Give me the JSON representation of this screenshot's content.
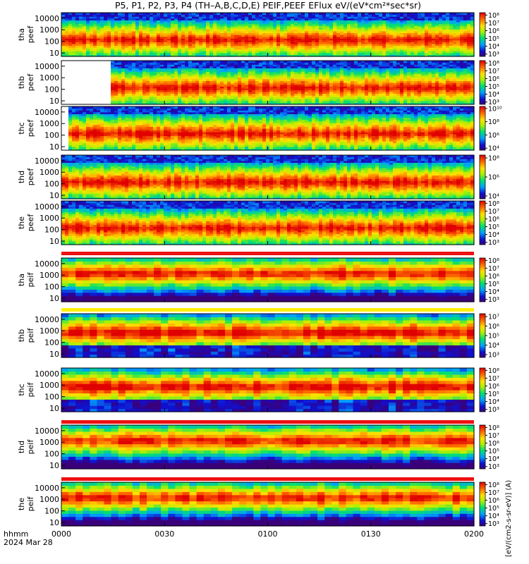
{
  "title": "P5, P1, P2, P3, P4 (TH–A,B,C,D,E) PEIF,PEEF EFlux eV/(eV*cm²*sec*sr)",
  "time_axis": {
    "label_top": "hhmm",
    "label_bottom": "2024 Mar 28",
    "ticks": [
      "0000",
      "0030",
      "0100",
      "0130",
      "0200"
    ],
    "range_minutes": [
      0,
      120
    ]
  },
  "colorbar_label": "[eV/(cm2-s-sr-eV)] (A)",
  "chart_data": [
    {
      "type": "heatmap",
      "panel": "tha peef",
      "probe": "tha",
      "product": "peef",
      "ylabels": [
        "10000",
        "1000",
        "100",
        "10"
      ],
      "ylog": true,
      "ylim": [
        5,
        30000
      ],
      "cbar_ticks": [
        "10⁸",
        "10⁷",
        "10⁶",
        "10⁵",
        "10⁴",
        "10³"
      ],
      "cbar_exponents": [
        8,
        7,
        6,
        5,
        4,
        3
      ]
    },
    {
      "type": "heatmap",
      "panel": "thb peef",
      "probe": "thb",
      "product": "peef",
      "ylabels": [
        "10000",
        "1000",
        "100",
        "10"
      ],
      "ylog": true,
      "ylim": [
        5,
        30000
      ],
      "data_start_minute": 14,
      "cbar_ticks": [
        "10⁸",
        "10⁷",
        "10⁶",
        "10⁵",
        "10⁴",
        "10³"
      ],
      "cbar_exponents": [
        8,
        7,
        6,
        5,
        4,
        3
      ]
    },
    {
      "type": "heatmap",
      "panel": "thc peef",
      "probe": "thc",
      "product": "peef",
      "ylabels": [
        "10000",
        "1000",
        "100",
        "10"
      ],
      "ylog": true,
      "ylim": [
        5,
        30000
      ],
      "data_start_minute": 2,
      "cbar_ticks": [
        "10¹⁰",
        "10⁸",
        "10⁶",
        "10⁴"
      ],
      "cbar_exponents": [
        10,
        8,
        6,
        4
      ]
    },
    {
      "type": "heatmap",
      "panel": "thd peef",
      "probe": "thd",
      "product": "peef",
      "ylabels": [
        "10000",
        "1000",
        "100",
        "10"
      ],
      "ylog": true,
      "ylim": [
        5,
        30000
      ],
      "cbar_ticks": [
        "10⁸",
        "10⁶",
        "10⁴"
      ],
      "cbar_exponents": [
        8,
        6,
        4
      ]
    },
    {
      "type": "heatmap",
      "panel": "the peef",
      "probe": "the",
      "product": "peef",
      "ylabels": [
        "10000",
        "1000",
        "100",
        "10"
      ],
      "ylog": true,
      "ylim": [
        5,
        30000
      ],
      "cbar_ticks": [
        "10⁸",
        "10⁷",
        "10⁶",
        "10⁵",
        "10⁴",
        "10³"
      ],
      "cbar_exponents": [
        8,
        7,
        6,
        5,
        4,
        3
      ]
    },
    {
      "type": "heatmap",
      "panel": "tha peif",
      "probe": "tha",
      "product": "peif",
      "ylabels": [
        "10000",
        "1000",
        "100",
        "10"
      ],
      "ylog": true,
      "ylim": [
        5,
        30000
      ],
      "cbar_ticks": [
        "10⁸",
        "10⁷",
        "10⁶",
        "10⁵",
        "10⁴",
        "10³"
      ],
      "cbar_exponents": [
        8,
        7,
        6,
        5,
        4,
        3
      ]
    },
    {
      "type": "heatmap",
      "panel": "thb peif",
      "probe": "thb",
      "product": "peif",
      "ylabels": [
        "10000",
        "1000",
        "100",
        "10"
      ],
      "ylog": true,
      "ylim": [
        5,
        30000
      ],
      "cbar_ticks": [
        "10⁷",
        "10⁶",
        "10⁵",
        "10⁴",
        "10³"
      ],
      "cbar_exponents": [
        7,
        6,
        5,
        4,
        3
      ]
    },
    {
      "type": "heatmap",
      "panel": "thc peif",
      "probe": "thc",
      "product": "peif",
      "ylabels": [
        "10000",
        "1000",
        "100",
        "10"
      ],
      "ylog": true,
      "ylim": [
        5,
        30000
      ],
      "cbar_ticks": [
        "10⁸",
        "10⁷",
        "10⁶",
        "10⁵",
        "10⁴",
        "10³"
      ],
      "cbar_exponents": [
        8,
        7,
        6,
        5,
        4,
        3
      ]
    },
    {
      "type": "heatmap",
      "panel": "thd peif",
      "probe": "thd",
      "product": "peif",
      "ylabels": [
        "10000",
        "1000",
        "100",
        "10"
      ],
      "ylog": true,
      "ylim": [
        5,
        30000
      ],
      "cbar_ticks": [
        "10⁸",
        "10⁷",
        "10⁶",
        "10⁵",
        "10⁴",
        "10³"
      ],
      "cbar_exponents": [
        8,
        7,
        6,
        5,
        4,
        3
      ]
    },
    {
      "type": "heatmap",
      "panel": "the peif",
      "probe": "the",
      "product": "peif",
      "ylabels": [
        "10000",
        "1000",
        "100",
        "10"
      ],
      "ylog": true,
      "ylim": [
        5,
        30000
      ],
      "cbar_ticks": [
        "10⁸",
        "10⁷",
        "10⁶",
        "10⁵",
        "10⁴",
        "10³"
      ],
      "cbar_exponents": [
        8,
        7,
        6,
        5,
        4,
        3
      ]
    }
  ]
}
